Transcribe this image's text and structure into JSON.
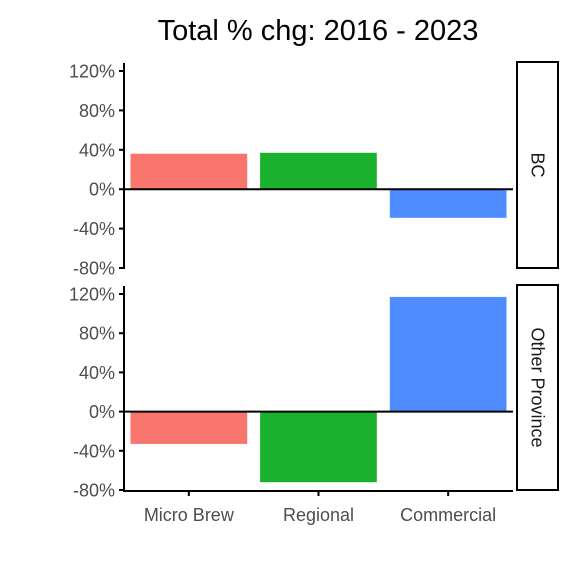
{
  "chart_data": {
    "type": "bar",
    "title": "Total % chg: 2016 - 2023",
    "xlabel": "",
    "ylabel": "",
    "categories": [
      "Micro Brew",
      "Regional",
      "Commercial"
    ],
    "colors": [
      "#f8766d",
      "#1ab12e",
      "#4f8cff"
    ],
    "ylim": [
      -80,
      120
    ],
    "yticks": [
      -80,
      -40,
      0,
      40,
      80,
      120
    ],
    "ytick_labels": [
      "-80%",
      "-40%",
      "0%",
      "40%",
      "80%",
      "120%"
    ],
    "grid": false,
    "legend": "none",
    "panels": [
      {
        "name": "BC",
        "values": [
          36,
          37,
          -29
        ]
      },
      {
        "name": "Other Province",
        "values": [
          -33,
          -72,
          117
        ]
      }
    ]
  }
}
